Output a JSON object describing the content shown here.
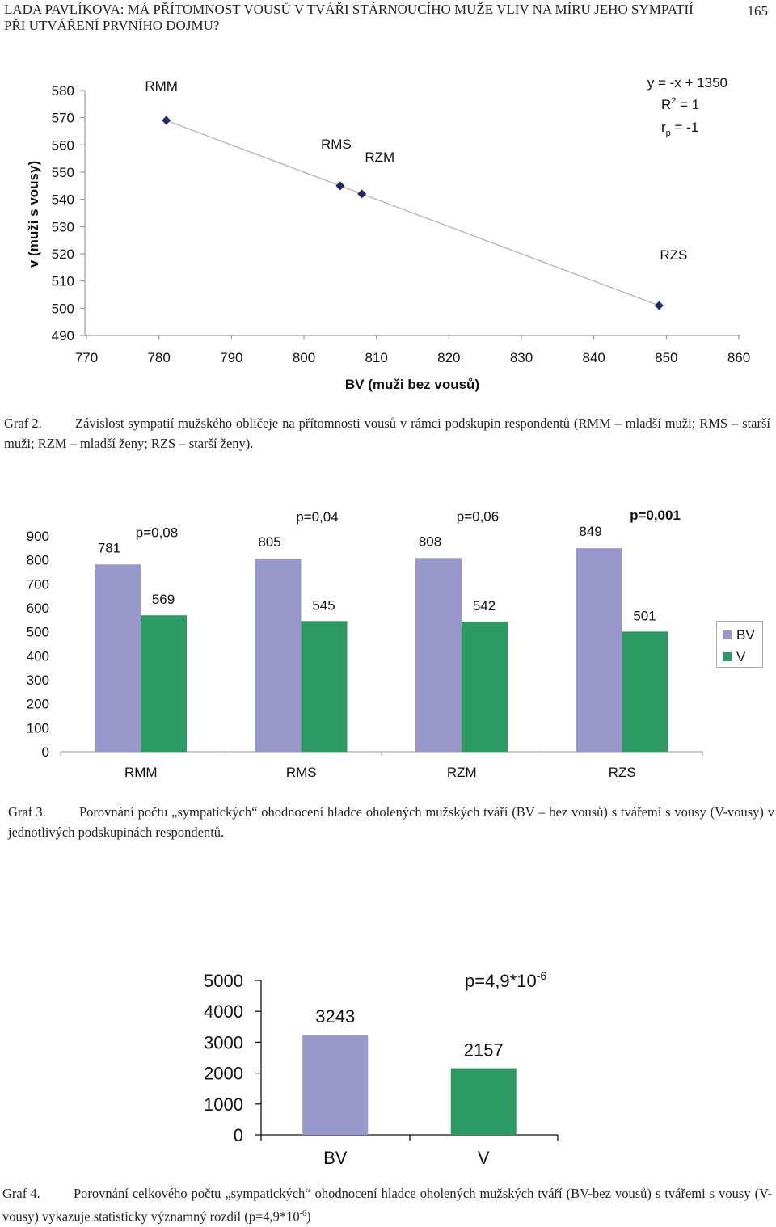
{
  "header": {
    "title": "LADA PAVLÍKOVA: MÁ PŘÍTOMNOST VOUSŮ V TVÁŘI STÁRNOUCÍHO MUŽE VLIV NA MÍRU JEHO SYMPATIÍ PŘI UTVÁŘENÍ PRVNÍHO DOJMU?",
    "page_number": "165"
  },
  "captions": {
    "graf2_label": "Graf 2.",
    "graf2_text": "Závislost sympatií mužského obličeje na přítomnosti vousů v rámci podskupin respondentů (RMM – mladší muži; RMS – starší muži; RZM – mladší ženy; RZS – starší ženy).",
    "graf3_label": "Graf 3.",
    "graf3_text": "Porovnání počtu „sympatických“ ohodnocení hladce oholených mužských tváří (BV – bez vousů) s tvářemi s vousy (V-vousy) v jednotlivých podskupinách respondentů.",
    "graf4_label": "Graf 4.",
    "graf4_text_1": "Porovnání celkového počtu „sympatických“ ohodnocení hladce oholených mužských tváří (BV-bez vousů) s tvářemi s vousy (V-vousy) vykazuje statisticky významný rozdíl (p=4,9*10",
    "graf4_text_sup": "-6",
    "graf4_text_2": ")"
  },
  "chart_data": [
    {
      "id": "graf2",
      "type": "scatter",
      "xlabel": "BV (muži bez vousů)",
      "ylabel": "v (muži s vousy)",
      "xlim": [
        770,
        860
      ],
      "ylim": [
        490,
        580
      ],
      "xticks": [
        "770",
        "780",
        "790",
        "800",
        "810",
        "820",
        "830",
        "840",
        "850",
        "860"
      ],
      "yticks": [
        "580",
        "570",
        "560",
        "550",
        "540",
        "530",
        "520",
        "510",
        "500",
        "490"
      ],
      "points": [
        {
          "label": "RMM",
          "x": 781,
          "y": 569
        },
        {
          "label": "RMS",
          "x": 805,
          "y": 545
        },
        {
          "label": "RZM",
          "x": 808,
          "y": 542
        },
        {
          "label": "RZS",
          "x": 849,
          "y": 501
        }
      ],
      "trendline": {
        "slope": -1,
        "intercept": 1350
      },
      "annotations": {
        "equation": "y = -x + 1350",
        "r2_base": "R",
        "r2_exp": "2",
        "r2_rest": " = 1",
        "rp_base": "r",
        "rp_sub": "p",
        "rp_rest": " = -1"
      }
    },
    {
      "id": "graf3",
      "type": "bar",
      "categories": [
        "RMM",
        "RMS",
        "RZM",
        "RZS"
      ],
      "series": [
        {
          "name": "BV",
          "color": "#9797c9",
          "values": [
            781,
            805,
            808,
            849
          ]
        },
        {
          "name": "V",
          "color": "#2e9a63",
          "values": [
            569,
            545,
            542,
            501
          ]
        }
      ],
      "pvalues": [
        "p=0,08",
        "p=0,04",
        "p=0,06",
        "p=0,001"
      ],
      "ylim": [
        0,
        900
      ],
      "yticks": [
        "900",
        "800",
        "700",
        "600",
        "500",
        "400",
        "300",
        "200",
        "100",
        "0"
      ],
      "legend": [
        "BV",
        "V"
      ]
    },
    {
      "id": "graf4",
      "type": "bar",
      "categories": [
        "BV",
        "V"
      ],
      "values": [
        3243,
        2157
      ],
      "colors": [
        "#9797c9",
        "#2e9a63"
      ],
      "ylim": [
        0,
        5000
      ],
      "yticks": [
        "5000",
        "4000",
        "3000",
        "2000",
        "1000",
        "0"
      ],
      "pvalue_base": "p=4,9*10",
      "pvalue_exp": "-6"
    }
  ]
}
